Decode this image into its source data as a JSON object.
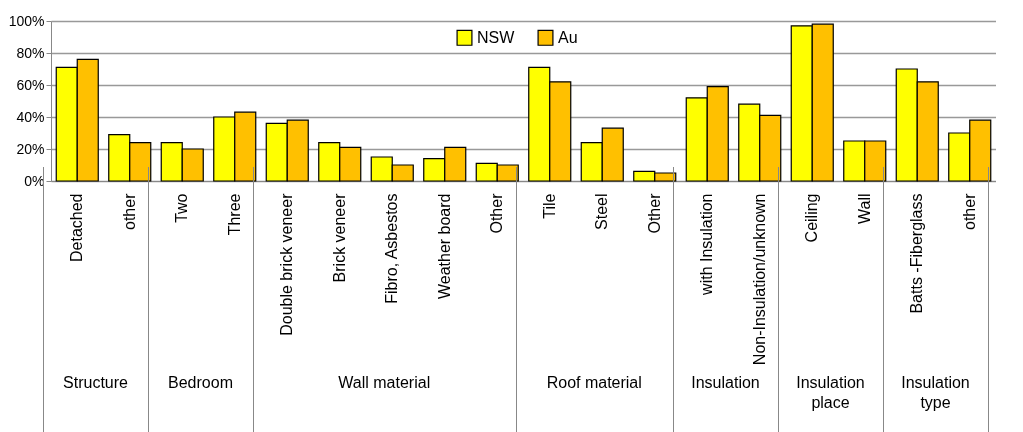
{
  "chart_data": {
    "type": "bar",
    "categories": [
      "Detached",
      "other",
      "Two",
      "Three",
      "Double brick veneer",
      "Brick veneer",
      "Fibro, Asbestos",
      "Weather board",
      "Other",
      "Tile",
      "Steel",
      "Other",
      "with Insulation",
      "Non-Insulation/unknown",
      "Ceiling",
      "Wall",
      "Batts -Fiberglass",
      "other"
    ],
    "series": [
      {
        "name": "NSW",
        "color": "#ffff00",
        "values": [
          71,
          29,
          24,
          40,
          36,
          24,
          15,
          14,
          11,
          71,
          24,
          6,
          52,
          48,
          97,
          25,
          70,
          30
        ]
      },
      {
        "name": "Au",
        "color": "#ffc000",
        "values": [
          76,
          24,
          20,
          43,
          38,
          21,
          10,
          21,
          10,
          62,
          33,
          5,
          59,
          41,
          98,
          25,
          62,
          38
        ]
      }
    ],
    "annotations": [
      "Structure",
      "Bedroom",
      "Wall material",
      "Roof material",
      "Insulation",
      "Insulation place",
      "Insulation type"
    ],
    "ylim": [
      0,
      100
    ],
    "yticks": [
      {
        "value": 0,
        "label": "0%"
      },
      {
        "value": 20,
        "label": "20%"
      },
      {
        "value": 40,
        "label": "40%"
      },
      {
        "value": 60,
        "label": "60%"
      },
      {
        "value": 80,
        "label": "80%"
      },
      {
        "value": 100,
        "label": "100%"
      }
    ],
    "grid": "y",
    "legend": "top"
  }
}
